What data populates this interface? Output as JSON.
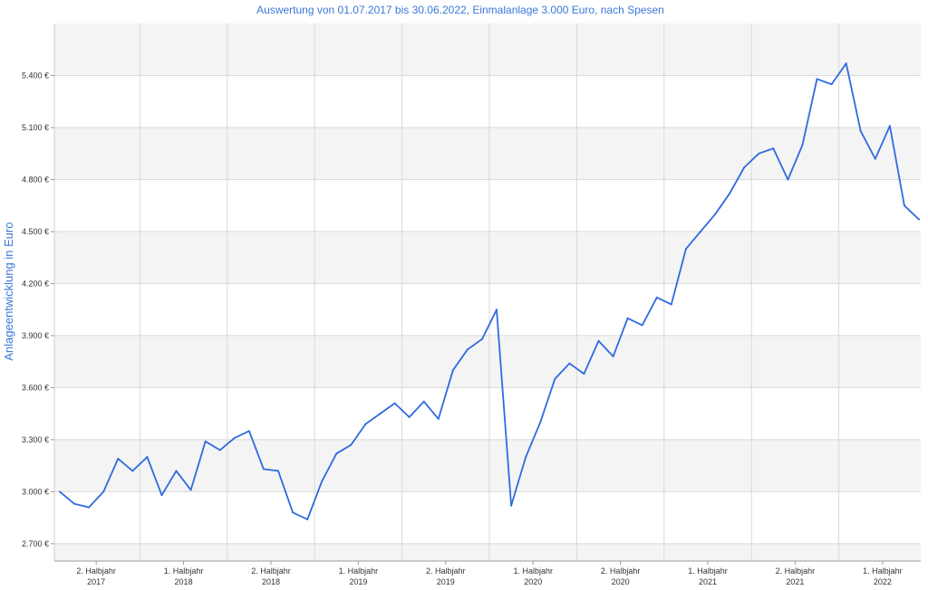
{
  "chart_data": {
    "type": "line",
    "title": "Auswertung von 01.07.2017 bis 30.06.2022, Einmalanlage 3.000 Euro, nach Spesen",
    "ylabel": "Anlageentwicklung  in Euro",
    "xlabel": "",
    "ylim": [
      2600,
      5700
    ],
    "grid": true,
    "y_ticks": [
      "2.700 €",
      "3.000 €",
      "3.300 €",
      "3.600 €",
      "3.900 €",
      "4.200 €",
      "4.500 €",
      "4.800 €",
      "5.100 €",
      "5.400 €"
    ],
    "y_tick_values": [
      2700,
      3000,
      3300,
      3600,
      3900,
      4200,
      4500,
      4800,
      5100,
      5400
    ],
    "x_tick_labels": [
      {
        "line1": "2. Halbjahr",
        "line2": "2017"
      },
      {
        "line1": "1. Halbjahr",
        "line2": "2018"
      },
      {
        "line1": "2. Halbjahr",
        "line2": "2018"
      },
      {
        "line1": "1. Halbjahr",
        "line2": "2019"
      },
      {
        "line1": "2. Halbjahr",
        "line2": "2019"
      },
      {
        "line1": "1. Halbjahr",
        "line2": "2020"
      },
      {
        "line1": "2. Halbjahr",
        "line2": "2020"
      },
      {
        "line1": "1. Halbjahr",
        "line2": "2021"
      },
      {
        "line1": "2. Halbjahr",
        "line2": "2021"
      },
      {
        "line1": "1. Halbjahr",
        "line2": "2022"
      }
    ],
    "line_color": "#2f6ae0",
    "series": [
      {
        "x": [
          "2017-07",
          "2017-08",
          "2017-09",
          "2017-10",
          "2017-11",
          "2017-12",
          "2018-01",
          "2018-02",
          "2018-03",
          "2018-04",
          "2018-05",
          "2018-06",
          "2018-07",
          "2018-08",
          "2018-09",
          "2018-10",
          "2018-11",
          "2018-12",
          "2019-01",
          "2019-02",
          "2019-03",
          "2019-04",
          "2019-05",
          "2019-06",
          "2019-07",
          "2019-08",
          "2019-09",
          "2019-10",
          "2019-11",
          "2019-12",
          "2020-01",
          "2020-02",
          "2020-03",
          "2020-04",
          "2020-05",
          "2020-06",
          "2020-07",
          "2020-08",
          "2020-09",
          "2020-10",
          "2020-11",
          "2020-12",
          "2021-01",
          "2021-02",
          "2021-03",
          "2021-04",
          "2021-05",
          "2021-06",
          "2021-07",
          "2021-08",
          "2021-09",
          "2021-10",
          "2021-11",
          "2021-12",
          "2022-01",
          "2022-02",
          "2022-03",
          "2022-04",
          "2022-05",
          "2022-06"
        ],
        "values": [
          3000,
          2930,
          2910,
          3000,
          3190,
          3120,
          3200,
          2980,
          3120,
          3010,
          3290,
          3240,
          3310,
          3350,
          3130,
          3120,
          2880,
          2840,
          3060,
          3220,
          3270,
          3390,
          3450,
          3510,
          3430,
          3520,
          3420,
          3700,
          3820,
          3880,
          4050,
          2920,
          3200,
          3400,
          3650,
          3740,
          3680,
          3870,
          3780,
          4000,
          3960,
          4120,
          4080,
          4400,
          4500,
          4600,
          4720,
          4870,
          4950,
          4980,
          4800,
          5000,
          5380,
          5350,
          5470,
          5080,
          4920,
          5110,
          4650,
          4570
        ]
      }
    ]
  }
}
